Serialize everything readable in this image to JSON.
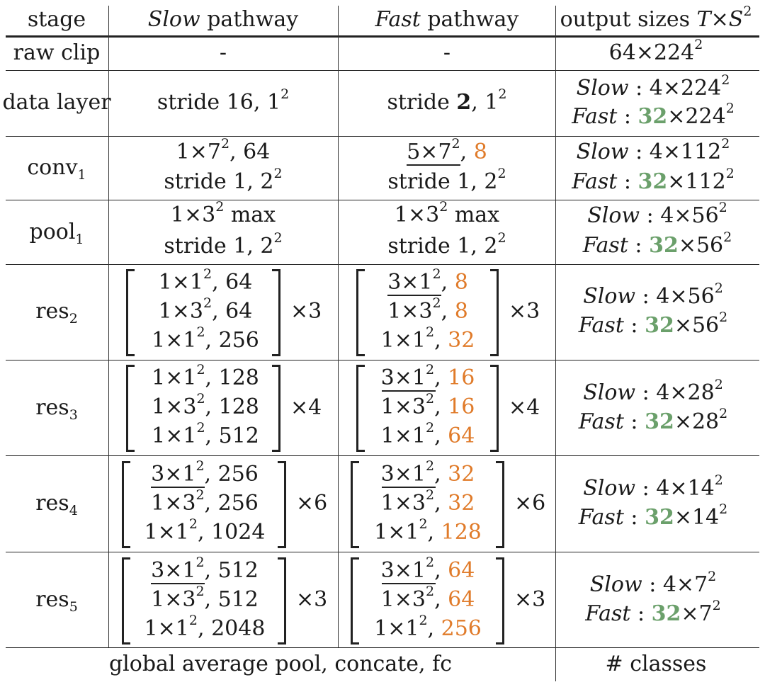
{
  "header": {
    "stage": "stage",
    "slow_word": "Slow",
    "slow_rest": "pathway",
    "fast_word": "Fast",
    "fast_rest": "pathway",
    "output_text": "output sizes",
    "output_T": "T",
    "output_x": "×",
    "output_S": "S",
    "output_exp": "2"
  },
  "labels": {
    "slow": "Slow",
    "fast": "Fast",
    "colon": ":"
  },
  "rows": {
    "raw_clip": {
      "stage": "raw clip",
      "slow": "-",
      "fast": "-",
      "out_base": "64×224",
      "out_exp": "2"
    },
    "data_layer": {
      "stage": "data layer",
      "slow_pre": "stride 16, 1",
      "slow_exp": "2",
      "fast_pre": "stride ",
      "fast_bold": "2",
      "fast_post": ", 1",
      "fast_exp": "2",
      "out_slow_pre": "4×224",
      "out_slow_exp": "2",
      "out_fast_num": "32",
      "out_fast_post": "×224",
      "out_fast_exp": "2"
    },
    "conv1": {
      "stage_base": "conv",
      "stage_sub": "1",
      "slow1_pre": "1×7",
      "slow1_exp": "2",
      "slow1_post": ", 64",
      "slow2_pre": "stride 1, 2",
      "slow2_exp": "2",
      "fast1_pre": "5×7",
      "fast1_exp": "2",
      "fast1_sep": ", ",
      "fast1_num": "8",
      "fast2_pre": "stride 1, 2",
      "fast2_exp": "2",
      "out_slow_pre": "4×112",
      "out_slow_exp": "2",
      "out_fast_num": "32",
      "out_fast_post": "×112",
      "out_fast_exp": "2"
    },
    "pool1": {
      "stage_base": "pool",
      "stage_sub": "1",
      "slow1_pre": "1×3",
      "slow1_exp": "2",
      "slow1_post": " max",
      "slow2_pre": "stride 1, 2",
      "slow2_exp": "2",
      "fast1_pre": "1×3",
      "fast1_exp": "2",
      "fast1_post": " max",
      "fast2_pre": "stride 1, 2",
      "fast2_exp": "2",
      "out_slow_pre": "4×56",
      "out_slow_exp": "2",
      "out_fast_num": "32",
      "out_fast_post": "×56",
      "out_fast_exp": "2"
    },
    "res2": {
      "stage_base": "res",
      "stage_sub": "2",
      "slow": [
        {
          "pre": "1×1",
          "exp": "2",
          "post": ", 64"
        },
        {
          "pre": "1×3",
          "exp": "2",
          "post": ", 64"
        },
        {
          "pre": "1×1",
          "exp": "2",
          "post": ", 256"
        }
      ],
      "fast": [
        {
          "pre": "3×1",
          "exp": "2",
          "sep": ", ",
          "num": "8"
        },
        {
          "pre": "1×3",
          "exp": "2",
          "sep": ", ",
          "num": "8"
        },
        {
          "pre": "1×1",
          "exp": "2",
          "sep": ", ",
          "num": "32"
        }
      ],
      "mult": "×3",
      "out_slow_pre": "4×56",
      "out_slow_exp": "2",
      "out_fast_num": "32",
      "out_fast_post": "×56",
      "out_fast_exp": "2"
    },
    "res3": {
      "stage_base": "res",
      "stage_sub": "3",
      "slow": [
        {
          "pre": "1×1",
          "exp": "2",
          "post": ", 128"
        },
        {
          "pre": "1×3",
          "exp": "2",
          "post": ", 128"
        },
        {
          "pre": "1×1",
          "exp": "2",
          "post": ", 512"
        }
      ],
      "fast": [
        {
          "pre": "3×1",
          "exp": "2",
          "sep": ", ",
          "num": "16"
        },
        {
          "pre": "1×3",
          "exp": "2",
          "sep": ", ",
          "num": "16"
        },
        {
          "pre": "1×1",
          "exp": "2",
          "sep": ", ",
          "num": "64"
        }
      ],
      "mult": "×4",
      "out_slow_pre": "4×28",
      "out_slow_exp": "2",
      "out_fast_num": "32",
      "out_fast_post": "×28",
      "out_fast_exp": "2"
    },
    "res4": {
      "stage_base": "res",
      "stage_sub": "4",
      "slow": [
        {
          "pre": "3×1",
          "exp": "2",
          "post": ", 256"
        },
        {
          "pre": "1×3",
          "exp": "2",
          "post": ", 256"
        },
        {
          "pre": "1×1",
          "exp": "2",
          "post": ", 1024"
        }
      ],
      "fast": [
        {
          "pre": "3×1",
          "exp": "2",
          "sep": ", ",
          "num": "32"
        },
        {
          "pre": "1×3",
          "exp": "2",
          "sep": ", ",
          "num": "32"
        },
        {
          "pre": "1×1",
          "exp": "2",
          "sep": ", ",
          "num": "128"
        }
      ],
      "mult": "×6",
      "out_slow_pre": "4×14",
      "out_slow_exp": "2",
      "out_fast_num": "32",
      "out_fast_post": "×14",
      "out_fast_exp": "2"
    },
    "res5": {
      "stage_base": "res",
      "stage_sub": "5",
      "slow": [
        {
          "pre": "3×1",
          "exp": "2",
          "post": ", 512"
        },
        {
          "pre": "1×3",
          "exp": "2",
          "post": ", 512"
        },
        {
          "pre": "1×1",
          "exp": "2",
          "post": ", 2048"
        }
      ],
      "fast": [
        {
          "pre": "3×1",
          "exp": "2",
          "sep": ", ",
          "num": "64"
        },
        {
          "pre": "1×3",
          "exp": "2",
          "sep": ", ",
          "num": "64"
        },
        {
          "pre": "1×1",
          "exp": "2",
          "sep": ", ",
          "num": "256"
        }
      ],
      "mult": "×3",
      "out_slow_pre": "4×7",
      "out_slow_exp": "2",
      "out_fast_num": "32",
      "out_fast_post": "×7",
      "out_fast_exp": "2"
    }
  },
  "footer": {
    "left": "global average pool, concate, fc",
    "right": "# classes"
  },
  "colors": {
    "orange": "#E07B2A",
    "green": "#6BA06B",
    "text": "#1a1a1a"
  }
}
